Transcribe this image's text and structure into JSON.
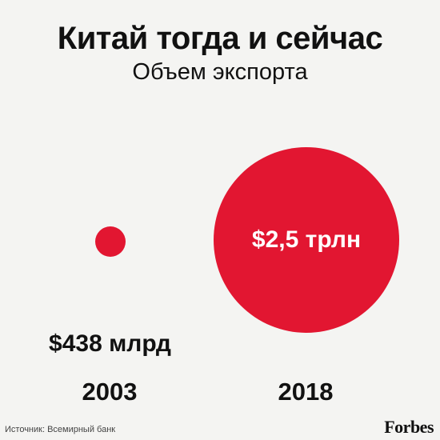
{
  "title": "Китай тогда и сейчас",
  "subtitle": "Объем экспорта",
  "source": "Источник: Всемирный банк",
  "brand": "Forbes",
  "colors": {
    "bubble": "#e21631",
    "background": "#f4f4f2"
  },
  "chart_data": {
    "type": "bubble",
    "title": "Китай тогда и сейчас",
    "subtitle": "Объем экспорта",
    "series": [
      {
        "category": "2003",
        "value": 0.438,
        "unit": "трлн $",
        "label": "$438 млрд"
      },
      {
        "category": "2018",
        "value": 2.5,
        "unit": "трлн $",
        "label": "$2,5 трлн"
      }
    ]
  }
}
